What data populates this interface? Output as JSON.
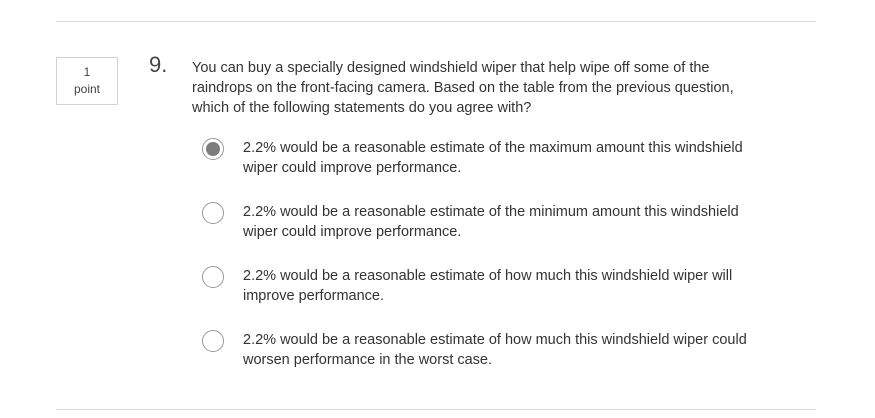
{
  "question": {
    "points_value": "1",
    "points_unit": "point",
    "number": "9.",
    "prompt": "You can buy a specially designed windshield wiper that help wipe off some of the raindrops on the front-facing camera. Based on the table from the previous question, which of the following statements do you agree with?",
    "options": [
      {
        "label": "2.2% would be a reasonable estimate of the maximum amount this windshield wiper could improve performance.",
        "selected": true
      },
      {
        "label": "2.2% would be a reasonable estimate of the minimum amount this windshield wiper could improve performance.",
        "selected": false
      },
      {
        "label": "2.2% would be a reasonable estimate of how much this windshield wiper will improve performance.",
        "selected": false
      },
      {
        "label": "2.2% would be a reasonable estimate of how much this windshield wiper could worsen performance in the worst case.",
        "selected": false
      }
    ]
  },
  "colors": {
    "divider": "#d7d7d7",
    "text": "#333333",
    "radio_fill": "#7d7d7d"
  }
}
